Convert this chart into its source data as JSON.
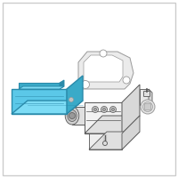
{
  "bg_color": "#ffffff",
  "border_color": "#cccccc",
  "border_linewidth": 1.0,
  "icm_color": "#5bc8e8",
  "icm_edge_color": "#2a8aaa",
  "icm_top_color": "#7ddcf5",
  "icm_right_color": "#3aaac8",
  "line_color": "#999999",
  "dark_line": "#555555",
  "fig_size": [
    2.0,
    2.0
  ],
  "dpi": 100
}
